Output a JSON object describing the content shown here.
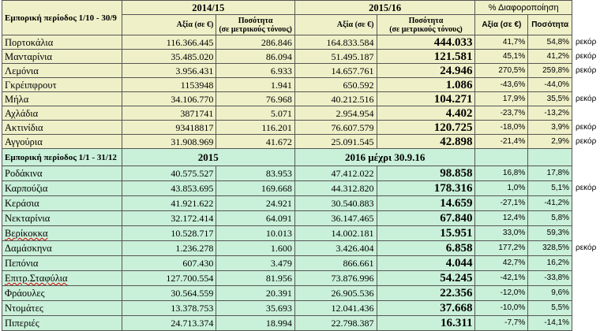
{
  "section1": {
    "period": "Εμπορική περίοδος  1/10 - 30/9",
    "group_a": "2014/15",
    "group_b": "2015/16",
    "group_c": "% Διαφοροποίηση",
    "sub_value": "Αξία (σε €)",
    "sub_qty_line1": "Ποσότητα",
    "sub_qty_line2": "(σε μετρικούς τόνους)",
    "sub_pct_value": "Αξία (σε €)",
    "sub_pct_qty": "Ποσότητα",
    "rows": [
      {
        "name": "Πορτοκάλια",
        "v1": "116.366.445",
        "q1": "286.846",
        "v2": "164.833.584",
        "q2": "444.033",
        "pv": "41,7%",
        "pq": "54,8%",
        "note": "ρεκόρ"
      },
      {
        "name": "Μανταρίνια",
        "v1": "35.485.020",
        "q1": "86.094",
        "v2": "51.495.187",
        "q2": "121.581",
        "pv": "45,1%",
        "pq": "41,2%",
        "note": "ρεκόρ"
      },
      {
        "name": "Λεμόνια",
        "v1": "3.956.431",
        "q1": "6.933",
        "v2": "14.657.761",
        "q2": "24.946",
        "pv": "270,5%",
        "pq": "259,8%",
        "note": "ρεκόρ"
      },
      {
        "name": "Γκρέιπφρουτ",
        "v1": "1153948",
        "q1": "1.941",
        "v2": "650.592",
        "q2": "1.086",
        "pv": "-43,6%",
        "pq": "-44,0%",
        "note": ""
      },
      {
        "name": "Μήλα",
        "v1": "34.106.770",
        "q1": "76.968",
        "v2": "40.212.516",
        "q2": "104.271",
        "pv": "17,9%",
        "pq": "35,5%",
        "note": "ρεκόρ"
      },
      {
        "name": "Αχλάδια",
        "v1": "3871741",
        "q1": "5.071",
        "v2": "2.954.954",
        "q2": "4.402",
        "pv": "-23,7%",
        "pq": "-13,2%",
        "note": ""
      },
      {
        "name": "Ακτινίδια",
        "v1": "93418817",
        "q1": "116.201",
        "v2": "76.607.579",
        "q2": "120.725",
        "pv": "-18,0%",
        "pq": "3,9%",
        "note": "ρεκόρ"
      },
      {
        "name": "Αγγούρια",
        "v1": "31.908.969",
        "q1": "41.672",
        "v2": "25.091.545",
        "q2": "42.898",
        "pv": "-21,4%",
        "pq": "2,9%",
        "note": "ρεκόρ"
      }
    ]
  },
  "section2": {
    "period": "Εμπορική περίοδος  1/1 - 31/12",
    "group_a": "2015",
    "group_b": "2016 μέχρι 30.9.16",
    "rows": [
      {
        "name": "Ροδάκινα",
        "v1": "40.575.527",
        "q1": "83.953",
        "v2": "47.412.022",
        "q2": "98.858",
        "pv": "16,8%",
        "pq": "17,8%",
        "note": ""
      },
      {
        "name": "Καρπούζια",
        "v1": "43.853.695",
        "q1": "169.668",
        "v2": "44.312.820",
        "q2": "178.316",
        "pv": "1,0%",
        "pq": "5,1%",
        "note": "ρεκόρ"
      },
      {
        "name": "Κεράσια",
        "v1": "41.921.622",
        "q1": "24.921",
        "v2": "30.540.883",
        "q2": "14.659",
        "pv": "-27,1%",
        "pq": "-41,2%",
        "note": ""
      },
      {
        "name": "Νεκταρίνια",
        "v1": "32.172.414",
        "q1": "64.091",
        "v2": "36.147.465",
        "q2": "67.840",
        "pv": "12,4%",
        "pq": "5,8%",
        "note": ""
      },
      {
        "name": "Βερίκοκκα",
        "v1": "10.528.717",
        "q1": "10.013",
        "v2": "14.002.181",
        "q2": "15.951",
        "pv": "33,0%",
        "pq": "59,3%",
        "note": "",
        "squig": true
      },
      {
        "name": "Δαμάσκηνα",
        "v1": "1.236.278",
        "q1": "1.600",
        "v2": "3.426.404",
        "q2": "6.858",
        "pv": "177,2%",
        "pq": "328,5%",
        "note": "ρεκόρ"
      },
      {
        "name": "Πεπόνια",
        "v1": "607.430",
        "q1": "3.479",
        "v2": "866.661",
        "q2": "4.044",
        "pv": "42,7%",
        "pq": "16,2%",
        "note": ""
      },
      {
        "name": "Επιτρ.Σταφύλια",
        "v1": "127.700.554",
        "q1": "81.956",
        "v2": "73.876.996",
        "q2": "54.245",
        "pv": "-42,1%",
        "pq": "-33,8%",
        "note": "",
        "squig": true
      },
      {
        "name": "Φράουλες",
        "v1": "30.564.559",
        "q1": "20.391",
        "v2": "26.905.536",
        "q2": "22.356",
        "pv": "-12,0%",
        "pq": "9,6%",
        "note": ""
      },
      {
        "name": "Ντομάτες",
        "v1": "13.378.753",
        "q1": "35.693",
        "v2": "12.041.436",
        "q2": "37.668",
        "pv": "-10,0%",
        "pq": "5,5%",
        "note": ""
      },
      {
        "name": "Πιπεριές",
        "v1": "24.713.374",
        "q1": "18.994",
        "v2": "22.798.387",
        "q2": "16.311",
        "pv": "-7,7%",
        "pq": "-14,1%",
        "note": ""
      }
    ]
  },
  "colors": {
    "section1_bg": "#eff0c8",
    "section2_bg": "#c9f0d8",
    "grid": "#555555"
  }
}
